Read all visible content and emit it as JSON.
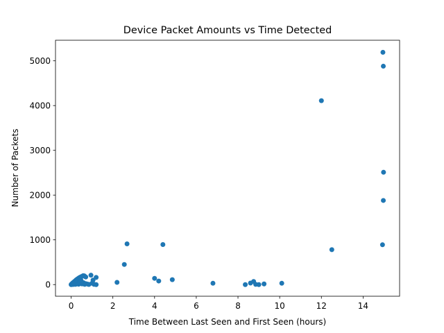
{
  "chart_data": {
    "type": "scatter",
    "title": "Device Packet Amounts vs Time Detected",
    "xlabel": "Time Between Last Seen and First Seen (hours)",
    "ylabel": "Number of Packets",
    "xlim": [
      -0.75,
      15.75
    ],
    "ylim": [
      -260,
      5460
    ],
    "xticks": [
      0,
      2,
      4,
      6,
      8,
      10,
      12,
      14
    ],
    "xtick_labels": [
      "0",
      "2",
      "4",
      "6",
      "8",
      "10",
      "12",
      "14"
    ],
    "yticks": [
      0,
      1000,
      2000,
      3000,
      4000,
      5000
    ],
    "ytick_labels": [
      "0",
      "1000",
      "2000",
      "3000",
      "4000",
      "5000"
    ],
    "grid": false,
    "legend": "none",
    "marker_color": "#1f77b4",
    "points": [
      {
        "x": 0.0,
        "y": 0
      },
      {
        "x": 0.01,
        "y": 5
      },
      {
        "x": 0.02,
        "y": 10
      },
      {
        "x": 0.03,
        "y": 2
      },
      {
        "x": 0.04,
        "y": 20
      },
      {
        "x": 0.05,
        "y": 8
      },
      {
        "x": 0.06,
        "y": 30
      },
      {
        "x": 0.08,
        "y": 15
      },
      {
        "x": 0.09,
        "y": 40
      },
      {
        "x": 0.1,
        "y": 3
      },
      {
        "x": 0.11,
        "y": 50
      },
      {
        "x": 0.12,
        "y": 25
      },
      {
        "x": 0.14,
        "y": 60
      },
      {
        "x": 0.15,
        "y": 10
      },
      {
        "x": 0.16,
        "y": 70
      },
      {
        "x": 0.17,
        "y": 35
      },
      {
        "x": 0.19,
        "y": 80
      },
      {
        "x": 0.2,
        "y": 5
      },
      {
        "x": 0.21,
        "y": 90
      },
      {
        "x": 0.22,
        "y": 45
      },
      {
        "x": 0.24,
        "y": 100
      },
      {
        "x": 0.25,
        "y": 12
      },
      {
        "x": 0.26,
        "y": 110
      },
      {
        "x": 0.28,
        "y": 55
      },
      {
        "x": 0.29,
        "y": 120
      },
      {
        "x": 0.3,
        "y": 20
      },
      {
        "x": 0.32,
        "y": 130
      },
      {
        "x": 0.33,
        "y": 65
      },
      {
        "x": 0.35,
        "y": 140
      },
      {
        "x": 0.36,
        "y": 8
      },
      {
        "x": 0.38,
        "y": 150
      },
      {
        "x": 0.4,
        "y": 75
      },
      {
        "x": 0.42,
        "y": 160
      },
      {
        "x": 0.44,
        "y": 30
      },
      {
        "x": 0.46,
        "y": 170
      },
      {
        "x": 0.48,
        "y": 90
      },
      {
        "x": 0.5,
        "y": 180
      },
      {
        "x": 0.52,
        "y": 15
      },
      {
        "x": 0.55,
        "y": 190
      },
      {
        "x": 0.58,
        "y": 200
      },
      {
        "x": 0.6,
        "y": 40
      },
      {
        "x": 0.63,
        "y": 195
      },
      {
        "x": 0.65,
        "y": 5
      },
      {
        "x": 0.7,
        "y": 170
      },
      {
        "x": 0.72,
        "y": 20
      },
      {
        "x": 0.8,
        "y": 10
      },
      {
        "x": 0.85,
        "y": 3
      },
      {
        "x": 0.95,
        "y": 210
      },
      {
        "x": 1.0,
        "y": 30
      },
      {
        "x": 1.05,
        "y": 100
      },
      {
        "x": 1.1,
        "y": 5
      },
      {
        "x": 1.2,
        "y": 160
      },
      {
        "x": 1.2,
        "y": 0
      },
      {
        "x": 2.2,
        "y": 50
      },
      {
        "x": 2.55,
        "y": 450
      },
      {
        "x": 2.68,
        "y": 910
      },
      {
        "x": 4.0,
        "y": 140
      },
      {
        "x": 4.2,
        "y": 80
      },
      {
        "x": 4.4,
        "y": 895
      },
      {
        "x": 4.85,
        "y": 110
      },
      {
        "x": 6.8,
        "y": 30
      },
      {
        "x": 8.35,
        "y": 0
      },
      {
        "x": 8.6,
        "y": 35
      },
      {
        "x": 8.75,
        "y": 70
      },
      {
        "x": 8.85,
        "y": 5
      },
      {
        "x": 9.0,
        "y": 0
      },
      {
        "x": 9.25,
        "y": 15
      },
      {
        "x": 10.1,
        "y": 30
      },
      {
        "x": 12.0,
        "y": 4110
      },
      {
        "x": 12.5,
        "y": 780
      },
      {
        "x": 14.95,
        "y": 5190
      },
      {
        "x": 14.97,
        "y": 4880
      },
      {
        "x": 14.98,
        "y": 2510
      },
      {
        "x": 14.97,
        "y": 1880
      },
      {
        "x": 14.93,
        "y": 890
      }
    ]
  }
}
